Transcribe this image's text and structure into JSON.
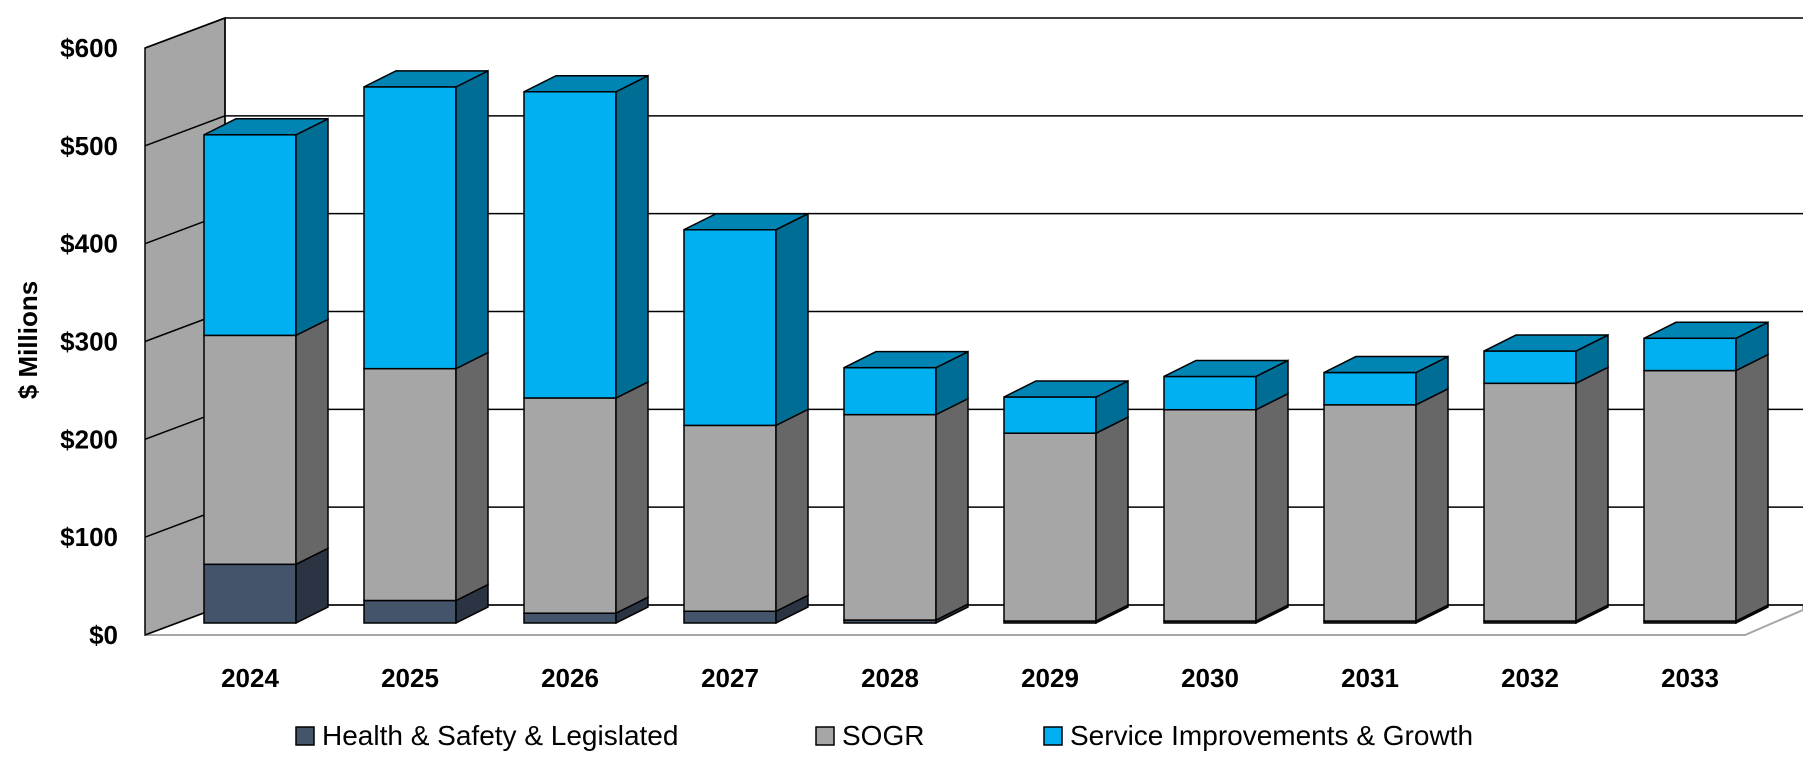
{
  "chart_data": {
    "type": "bar",
    "stacked": true,
    "three_d": true,
    "title": "",
    "xlabel": "",
    "ylabel": "$ Millions",
    "ylim": [
      0,
      600
    ],
    "yticks": [
      0,
      100,
      200,
      300,
      400,
      500,
      600
    ],
    "ytick_labels": [
      "$0",
      "$100",
      "$200",
      "$300",
      "$400",
      "$500",
      "$600"
    ],
    "grid": true,
    "legend_position": "bottom",
    "categories": [
      "2024",
      "2025",
      "2026",
      "2027",
      "2028",
      "2029",
      "2030",
      "2031",
      "2032",
      "2033"
    ],
    "series": [
      {
        "name": "Health & Safety & Legislated",
        "color": "#44546A",
        "values": [
          60,
          23,
          10,
          12,
          3,
          2,
          2,
          2,
          2,
          2
        ]
      },
      {
        "name": "SOGR",
        "color": "#A6A6A6",
        "values": [
          234,
          237,
          220,
          190,
          210,
          192,
          216,
          221,
          243,
          256
        ]
      },
      {
        "name": "Service Improvements & Growth",
        "color": "#00B0F0",
        "values": [
          205,
          288,
          313,
          200,
          48,
          37,
          34,
          33,
          33,
          33
        ]
      }
    ]
  }
}
